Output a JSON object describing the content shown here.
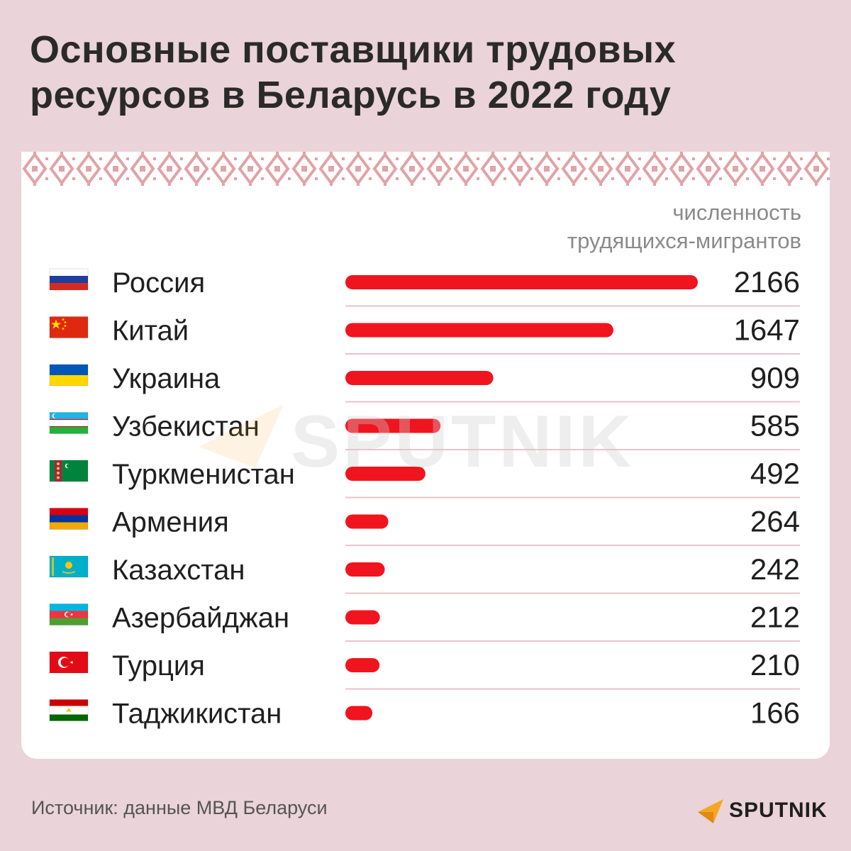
{
  "title": {
    "line1": "Основные поставщики трудовых",
    "line2": "ресурсов в Беларусь в 2022 году"
  },
  "unit_label": {
    "line1": "численность",
    "line2": "трудящихся-мигрантов"
  },
  "source": "Источник: данные МВД Беларуси",
  "logo": {
    "text": "SPUTNIK",
    "icon": "sputnik-logo-icon"
  },
  "watermark": "SPUTNIK",
  "colors": {
    "background": "#ead3d9",
    "bar": "#f0141e",
    "divider": "#e8c4c8",
    "ornament": "#e3a2a6",
    "logo_accent": "#f5a623"
  },
  "chart_data": {
    "type": "bar",
    "orientation": "horizontal",
    "categories": [
      "Россия",
      "Китай",
      "Украина",
      "Узбекистан",
      "Туркменистан",
      "Армения",
      "Казахстан",
      "Азербайджан",
      "Турция",
      "Таджикистан"
    ],
    "flags": [
      "russia-flag-icon",
      "china-flag-icon",
      "ukraine-flag-icon",
      "uzbekistan-flag-icon",
      "turkmenistan-flag-icon",
      "armenia-flag-icon",
      "kazakhstan-flag-icon",
      "azerbaijan-flag-icon",
      "turkey-flag-icon",
      "tajikistan-flag-icon"
    ],
    "values": [
      2166,
      1647,
      909,
      585,
      492,
      264,
      242,
      212,
      210,
      166
    ],
    "value_labels": [
      "2166",
      "1647",
      "909",
      "585",
      "492",
      "264",
      "242",
      "212",
      "210",
      "166"
    ],
    "xlim": [
      0,
      2166
    ],
    "grid": false,
    "legend": "none"
  }
}
